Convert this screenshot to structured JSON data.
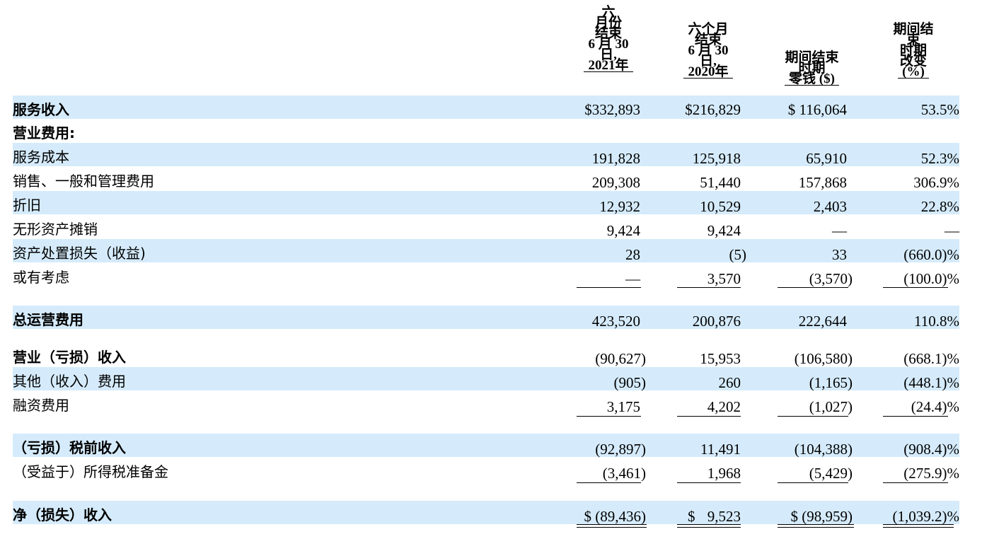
{
  "headers": [
    {
      "lines": [
        "六",
        "月份",
        "结束",
        "6 月 30",
        "日,",
        "2021年"
      ]
    },
    {
      "lines": [
        "六个月",
        "结束",
        "6 月 30",
        "日,",
        "2020年"
      ]
    },
    {
      "lines": [
        "期间结束",
        "时期",
        "零钱 ($)"
      ]
    },
    {
      "lines": [
        "期间结",
        "束",
        "时期",
        "改变",
        "(%)"
      ]
    }
  ],
  "rows": [
    {
      "label": "服务收入",
      "c1": "$332,893",
      "c2": "$216,829",
      "c3": "$ 116,064",
      "c4": "53.5%"
    },
    {
      "label": "营业费用:",
      "c1": "",
      "c2": "",
      "c3": "",
      "c4": ""
    },
    {
      "label": "服务成本",
      "c1": "191,828",
      "c2": "125,918",
      "c3": "65,910",
      "c4": "52.3%"
    },
    {
      "label": "销售、一般和管理费用",
      "c1": "209,308",
      "c2": "51,440",
      "c3": "157,868",
      "c4": "306.9%"
    },
    {
      "label": "折旧",
      "c1": "12,932",
      "c2": "10,529",
      "c3": "2,403",
      "c4": "22.8%"
    },
    {
      "label": "无形资产摊销",
      "c1": "9,424",
      "c2": "9,424",
      "c3": "—",
      "c4": "—"
    },
    {
      "label": "资产处置损失（收益)",
      "c1": "28",
      "c2": "(5)",
      "c3": "33",
      "c4": "(660.0)%"
    },
    {
      "label": "或有考虑",
      "c1": "—",
      "c2": "3,570",
      "c3": "(3,570)",
      "c4": "(100.0)%"
    },
    {
      "label": "总运营费用",
      "c1": "423,520",
      "c2": "200,876",
      "c3": "222,644",
      "c4": "110.8%"
    },
    {
      "label": "营业（亏损）收入",
      "c1": "(90,627)",
      "c2": "15,953",
      "c3": "(106,580)",
      "c4": "(668.1)%"
    },
    {
      "label": "其他（收入）费用",
      "c1": "(905)",
      "c2": "260",
      "c3": "(1,165)",
      "c4": "(448.1)%"
    },
    {
      "label": "融资费用",
      "c1": "3,175",
      "c2": "4,202",
      "c3": "(1,027)",
      "c4": "(24.4)%"
    },
    {
      "label": "（亏损）税前收入",
      "c1": "(92,897)",
      "c2": "11,491",
      "c3": "(104,388)",
      "c4": "(908.4)%"
    },
    {
      "label": "（受益于）所得税准备金",
      "c1": "(3,461)",
      "c2": "1,968",
      "c3": "(5,429)",
      "c4": "(275.9)%"
    },
    {
      "label": "净（损失）收入",
      "c1": "$ (89,436)",
      "c2": "$ 9,523",
      "c3": "$ (98,959)",
      "c4": "(1,039.2)%"
    }
  ]
}
